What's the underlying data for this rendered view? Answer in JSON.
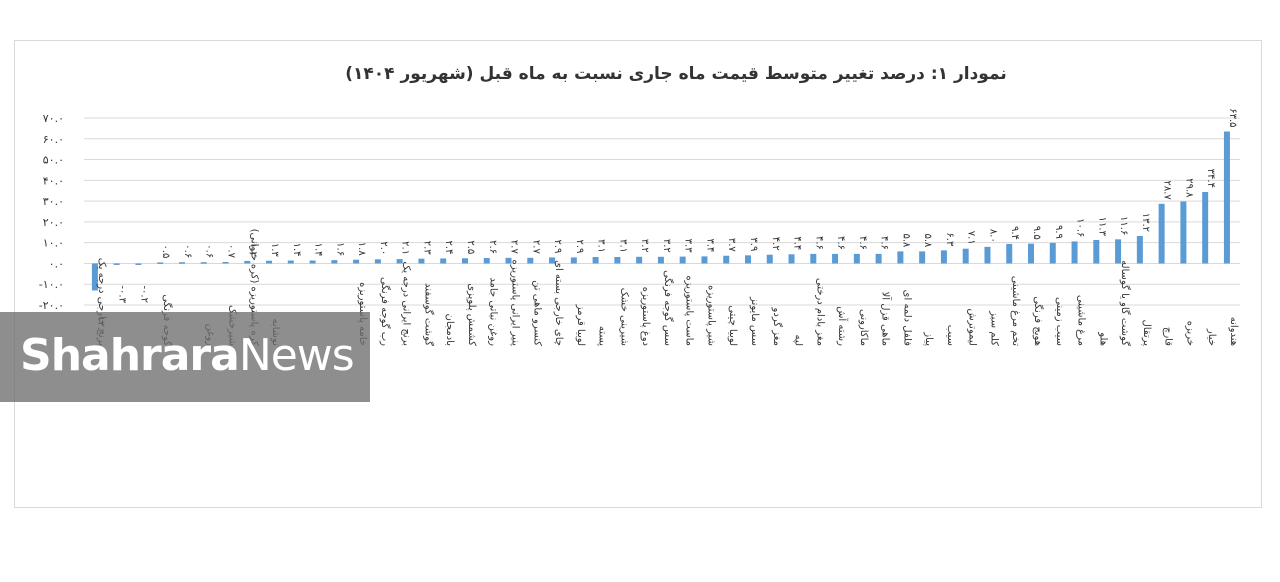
{
  "chart_data": {
    "type": "bar",
    "title": "نمودار ۱: درصد تغییر متوسط قیمت ماه جاری نسبت به ماه قبل (شهریور ۱۴۰۴)",
    "ylim": [
      -20,
      70
    ],
    "yticks": [
      -20,
      -10,
      0,
      10,
      20,
      30,
      40,
      50,
      60,
      70
    ],
    "ytick_labels": [
      "-۲۰.۰",
      "-۱۰.۰",
      "۰.۰",
      "۱۰.۰",
      "۲۰.۰",
      "۳۰.۰",
      "۴۰.۰",
      "۵۰.۰",
      "۶۰.۰",
      "۷۰.۰"
    ],
    "grid": true,
    "legend": "none",
    "bar_color": "#5b9bd5",
    "categories": [
      "برنج خارجی درجه یک",
      "",
      "",
      "گوجه فرنگی",
      "",
      "روغن",
      "شیرخشک",
      "کره پاستوریزه (کره حیوانی)",
      "نوشابه",
      "",
      "",
      "",
      "خامه پاستوریزه",
      "رب گوجه فرنگی",
      "برنج ایرانی درجه یک",
      "گوشت گوسفند",
      "بادمجان",
      "کشمش پلوپزی",
      "روغن نباتی جامد",
      "پنیر ایرانی پاستوریزه",
      "کنسرو ماهی تن",
      "چای خارجی بسته ای",
      "لوبیا قرمز",
      "پسته",
      "شیرینی خشک",
      "دوغ پاستوریزه",
      "سس گوجه فرنگی",
      "ماست پاستوریزه",
      "شیر پاستوریزه",
      "لوبیا چیتی",
      "سس مایونز",
      "مغز گردو",
      "لپه",
      "مغز بادام درختی",
      "رشته آش",
      "ماکارونی",
      "ماهی قزل آلا",
      "فلفل دلمه ای",
      "پیاز",
      "سیب",
      "لیموترش",
      "کلم سبز",
      "تخم مرغ ماشینی",
      "هویج فرنگی",
      "سیب زمینی",
      "مرغ ماشینی",
      "هلو",
      "گوشت گاو یا گوساله",
      "پرتقال",
      "قارچ",
      "خربزه",
      "خیار",
      "هندوانه"
    ],
    "values": [
      -13.0,
      -0.3,
      -0.2,
      0.5,
      0.6,
      0.6,
      0.7,
      1.2,
      1.3,
      1.4,
      1.4,
      1.6,
      1.8,
      2.0,
      2.1,
      2.3,
      2.4,
      2.5,
      2.6,
      2.7,
      2.7,
      2.9,
      2.9,
      3.1,
      3.1,
      3.2,
      3.2,
      3.3,
      3.4,
      3.7,
      3.9,
      4.2,
      4.4,
      4.6,
      4.6,
      4.6,
      4.6,
      5.8,
      5.8,
      6.3,
      7.1,
      8.0,
      9.4,
      9.5,
      9.9,
      10.6,
      11.3,
      11.6,
      13.2,
      28.7,
      29.8,
      34.4,
      63.5
    ],
    "value_labels": [
      "-۱۳.۰",
      "-۰.۳",
      "-۰.۲",
      "۰.۵",
      "۰.۶",
      "۰.۶",
      "۰.۷",
      "۱.۲",
      "۱.۳",
      "۱.۴",
      "۱.۴",
      "۱.۶",
      "۱.۸",
      "۲.۰",
      "۲.۱",
      "۲.۳",
      "۲.۴",
      "۲.۵",
      "۲.۶",
      "۲.۷",
      "۲.۷",
      "۲.۹",
      "۲.۹",
      "۳.۱",
      "۳.۱",
      "۳.۲",
      "۳.۲",
      "۳.۳",
      "۳.۴",
      "۳.۷",
      "۳.۹",
      "۴.۲",
      "۴.۴",
      "۴.۶",
      "۴.۶",
      "۴.۶",
      "۴.۶",
      "۵.۸",
      "۵.۸",
      "۶.۳",
      "۷.۱",
      "۸.۰",
      "۹.۴",
      "۹.۵",
      "۹.۹",
      "۱۰.۶",
      "۱۱.۳",
      "۱۱.۶",
      "۱۳.۲",
      "۲۸.۷",
      "۲۹.۸",
      "۳۴.۴",
      "۶۳.۵"
    ]
  },
  "watermark": {
    "part1": "Shahrara",
    "part2": "News"
  }
}
